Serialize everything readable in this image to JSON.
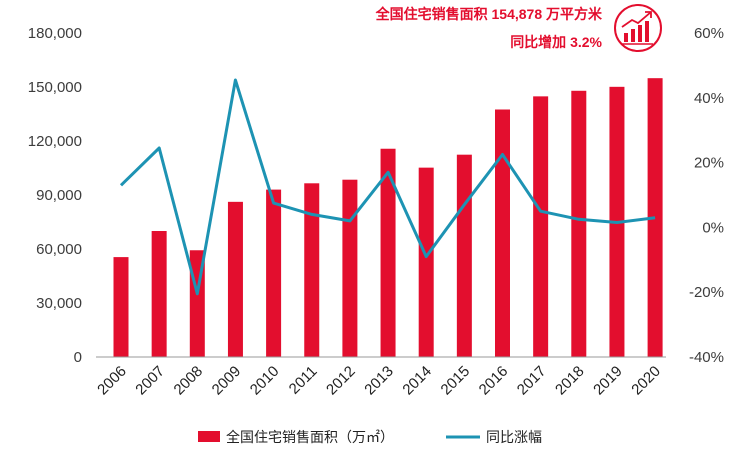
{
  "chart_data": {
    "type": "bar+line",
    "title": "",
    "annotation": {
      "line1": "全国住宅销售面积 154,878 万平方米",
      "line2": "同比增加 3.2%",
      "icon": "growth-chart-icon"
    },
    "categories": [
      "2006",
      "2007",
      "2008",
      "2009",
      "2010",
      "2011",
      "2012",
      "2013",
      "2014",
      "2015",
      "2016",
      "2017",
      "2018",
      "2019",
      "2020"
    ],
    "series": [
      {
        "name": "全国住宅销售面积（万㎡）",
        "type": "bar",
        "axis": "left",
        "color": "#e30e2e",
        "values": [
          55500,
          70000,
          59300,
          86200,
          93000,
          96500,
          98500,
          115700,
          105200,
          112400,
          137500,
          144800,
          147900,
          150100,
          154900
        ]
      },
      {
        "name": "同比涨幅",
        "type": "line",
        "axis": "right",
        "color": "#1d93b3",
        "values": [
          13,
          24.5,
          -20.5,
          45.5,
          7.5,
          4,
          2,
          17,
          -9,
          7,
          22.5,
          5,
          2.5,
          1.5,
          3
        ]
      }
    ],
    "y_left": {
      "min": 0,
      "max": 180000,
      "ticks": [
        "0",
        "30,000",
        "60,000",
        "90,000",
        "120,000",
        "150,000",
        "180,000"
      ]
    },
    "y_right": {
      "min": -40,
      "max": 60,
      "ticks": [
        "-40%",
        "-20%",
        "0%",
        "20%",
        "40%",
        "60%"
      ]
    },
    "legend": {
      "position": "bottom"
    },
    "grid": false
  }
}
